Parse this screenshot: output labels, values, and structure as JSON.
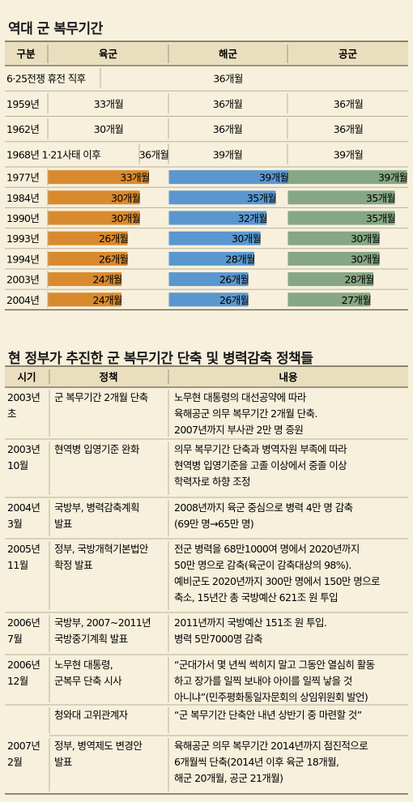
{
  "chart_data": {
    "type": "bar",
    "title": "역대 군 복무기간",
    "header": {
      "col0": "구분",
      "series": [
        "육군",
        "해군",
        "공군"
      ]
    },
    "unit": "개월",
    "colors": {
      "army": "#d98a2f",
      "navy": "#5b97cf",
      "airforce": "#86a784"
    },
    "text_rows": [
      {
        "label": "6·25전쟁 휴전 직후",
        "army": "",
        "navy": "36개월",
        "air": ""
      },
      {
        "label": "1959년",
        "army": "33개월",
        "navy": "36개월",
        "air": "36개월"
      },
      {
        "label": "1962년",
        "army": "30개월",
        "navy": "36개월",
        "air": "36개월"
      },
      {
        "label": "1968년 1·21사태 이후",
        "army": "36개월",
        "navy": "39개월",
        "air": "39개월"
      }
    ],
    "categories": [
      "1977년",
      "1984년",
      "1990년",
      "1993년",
      "1994년",
      "2003년",
      "2004년"
    ],
    "series": [
      {
        "name": "육군",
        "values": [
          33,
          30,
          30,
          26,
          26,
          24,
          24
        ]
      },
      {
        "name": "해군",
        "values": [
          39,
          35,
          32,
          30,
          28,
          26,
          26
        ]
      },
      {
        "name": "공군",
        "values": [
          39,
          35,
          35,
          30,
          30,
          28,
          27
        ]
      }
    ],
    "value_labels": [
      [
        "33개월",
        "30개월",
        "30개월",
        "26개월",
        "26개월",
        "24개월",
        "24개월"
      ],
      [
        "39개월",
        "35개월",
        "32개월",
        "30개월",
        "28개월",
        "26개월",
        "26개월"
      ],
      [
        "39개월",
        "35개월",
        "35개월",
        "30개월",
        "30개월",
        "28개월",
        "27개월"
      ]
    ]
  },
  "policy": {
    "title": "현 정부가 추진한 군 복무기간 단축 및 병력감축 정책들",
    "headers": [
      "시기",
      "정책",
      "내용"
    ],
    "rows": [
      {
        "date": [
          "2003년",
          "초"
        ],
        "policy": [
          "군 복무기간 2개월 단축"
        ],
        "content": [
          "노무현 대통령의 대선공약에 따라",
          "육해공군 의무 복무기간 2개월 단축.",
          "2007년까지 부사관 2만 명 증원"
        ]
      },
      {
        "date": [
          "2003년",
          "10월"
        ],
        "policy": [
          "현역병 입영기준 완화"
        ],
        "content": [
          "의무 복무기간 단축과 병역자원 부족에 따라",
          "현역병 입영기준을 고졸 이상에서 중졸 이상",
          "학력자로 하향 조정"
        ]
      },
      {
        "date": [
          "2004년",
          "3월"
        ],
        "policy": [
          "국방부, 병력감축계획",
          "발표"
        ],
        "content": [
          "2008년까지 육군 중심으로 병력 4만 명 감축",
          "(69만 명→65만 명)"
        ]
      },
      {
        "date": [
          "2005년",
          "11월"
        ],
        "policy": [
          "정부, 국방개혁기본법안",
          "확정 발표"
        ],
        "content": [
          "전군 병력을 68만1000여 명에서 2020년까지",
          "50만 명으로 감축(육군이 감축대상의 98%).",
          "예비군도 2020년까지 300만 명에서 150만 명으로",
          "축소, 15년간 총 국방예산 621조 원 투입"
        ]
      },
      {
        "date": [
          "2006년",
          "7월"
        ],
        "policy": [
          "국방부, 2007~2011년",
          "국방중기계획 발표"
        ],
        "content": [
          "2011년까지 국방예산 151조 원 투입.",
          "병력 5만7000명 감축"
        ]
      },
      {
        "date": [
          "2006년",
          "12월"
        ],
        "policy": [
          "노무현 대통령,",
          "군복무 단축 시사"
        ],
        "content": [
          "“군대가서 몇 년씩 썩히지 말고 그동안 열심히 활동",
          "하고 장가를 일찍 보내야 아이를 일찍 낳을 것",
          "아니냐”(민주평화통일자문회의 상임위원회 발언)"
        ]
      },
      {
        "date": [],
        "policy": [
          "청와대 고위관계자"
        ],
        "content": [
          "“군 복무기간 단축안 내년 상반기 중 마련할 것”"
        ]
      },
      {
        "date": [
          "2007년",
          "2월"
        ],
        "policy": [
          "정부, 병역제도 변경안",
          "발표"
        ],
        "content": [
          "육해공군 의무 복무기간 2014년까지 점진적으로",
          "6개월씩 단축(2014년 이후 육군 18개월,",
          "해군 20개월, 공군 21개월)"
        ]
      }
    ]
  }
}
